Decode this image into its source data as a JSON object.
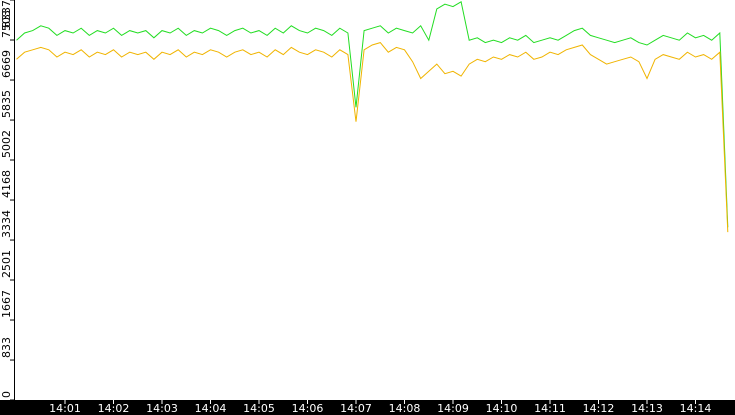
{
  "chart_data": {
    "type": "line",
    "categories": [
      null,
      null,
      null,
      null,
      null,
      null,
      "14:01",
      null,
      null,
      null,
      null,
      null,
      "14:02",
      null,
      null,
      null,
      null,
      null,
      "14:03",
      null,
      null,
      null,
      null,
      null,
      "14:04",
      null,
      null,
      null,
      null,
      null,
      "14:05",
      null,
      null,
      null,
      null,
      null,
      "14:06",
      null,
      null,
      null,
      null,
      null,
      "14:07",
      null,
      null,
      null,
      null,
      null,
      "14:08",
      null,
      null,
      null,
      null,
      null,
      "14:09",
      null,
      null,
      null,
      null,
      null,
      "14:10",
      null,
      null,
      null,
      null,
      null,
      "14:11",
      null,
      null,
      null,
      null,
      null,
      "14:12",
      null,
      null,
      null,
      null,
      null,
      "14:13",
      null,
      null,
      null,
      null,
      null,
      "14:14",
      null,
      null,
      null,
      null
    ],
    "series": [
      {
        "color": "#22dd22",
        "values": [
          7500,
          7650,
          7700,
          7800,
          7750,
          7600,
          7700,
          7650,
          7750,
          7600,
          7700,
          7650,
          7750,
          7600,
          7700,
          7650,
          7700,
          7550,
          7700,
          7650,
          7750,
          7600,
          7700,
          7650,
          7750,
          7700,
          7600,
          7700,
          7750,
          7650,
          7700,
          7600,
          7750,
          7650,
          7800,
          7700,
          7650,
          7750,
          7700,
          7600,
          7750,
          7650,
          6100,
          7700,
          7750,
          7800,
          7650,
          7750,
          7700,
          7650,
          7800,
          7500,
          8150,
          8250,
          8200,
          8300,
          7500,
          7550,
          7450,
          7500,
          7450,
          7550,
          7500,
          7600,
          7450,
          7500,
          7550,
          7500,
          7600,
          7700,
          7750,
          7600,
          7550,
          7500,
          7450,
          7500,
          7550,
          7450,
          7400,
          7500,
          7600,
          7550,
          7500,
          7650,
          7550,
          7600,
          7500,
          7650,
          3600
        ]
      },
      {
        "color": "#f0b400",
        "values": [
          7100,
          7250,
          7300,
          7350,
          7300,
          7150,
          7250,
          7200,
          7300,
          7150,
          7250,
          7200,
          7300,
          7150,
          7250,
          7200,
          7250,
          7100,
          7250,
          7200,
          7300,
          7150,
          7250,
          7200,
          7300,
          7250,
          7150,
          7250,
          7300,
          7200,
          7250,
          7150,
          7300,
          7200,
          7350,
          7250,
          7200,
          7300,
          7250,
          7150,
          7300,
          7200,
          5800,
          7300,
          7400,
          7450,
          7250,
          7350,
          7300,
          7050,
          6700,
          6850,
          7000,
          6800,
          6850,
          6750,
          7000,
          7100,
          7050,
          7150,
          7100,
          7200,
          7150,
          7250,
          7100,
          7150,
          7250,
          7200,
          7300,
          7350,
          7400,
          7200,
          7100,
          7000,
          7050,
          7100,
          7150,
          7050,
          6700,
          7100,
          7200,
          7150,
          7100,
          7250,
          7150,
          7200,
          7100,
          7250,
          3500
        ]
      }
    ],
    "ylim": [
      0,
      8337
    ],
    "yticks": [
      0,
      833,
      1667,
      2501,
      3334,
      4168,
      5002,
      5835,
      6669,
      7503,
      8337
    ]
  }
}
